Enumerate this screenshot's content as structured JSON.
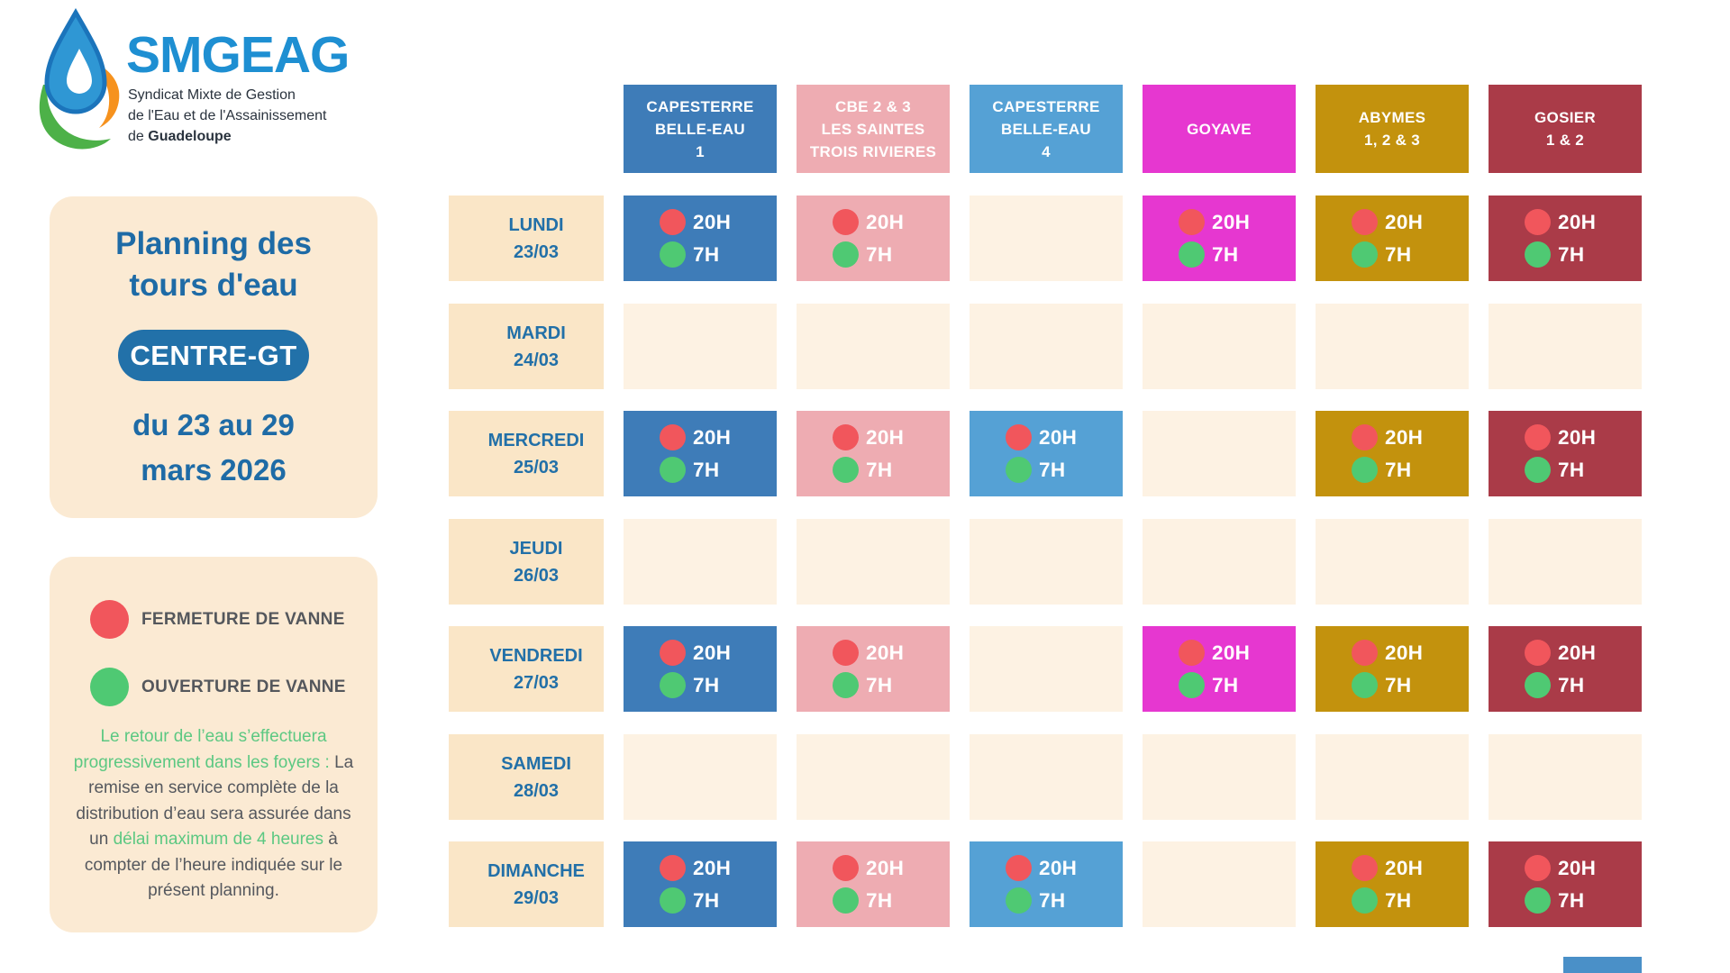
{
  "logo": {
    "brand": "SMGEAG",
    "subtitle_line1": "Syndicat Mixte de Gestion",
    "subtitle_line2": "de l'Eau et de l'Assainissement",
    "subtitle_line3_prefix": "de ",
    "subtitle_line3_bold": "Guadeloupe"
  },
  "intro": {
    "title_line1": "Planning des",
    "title_line2": "tours d'eau",
    "badge": "CENTRE-GT",
    "date_line1": "du 23 au 29",
    "date_line2": "mars 2026",
    "badge_color": "#2271a9",
    "text_color": "#1e6ba6"
  },
  "legend": {
    "items": [
      {
        "id": "fermeture",
        "label": "FERMETURE DE VANNE",
        "color": "#f1565c"
      },
      {
        "id": "ouverture",
        "label": "OUVERTURE DE VANNE",
        "color": "#4fc973"
      }
    ],
    "note_segments": [
      {
        "text": "Le retour de l’eau s’effectuera progressivement dans les foyers :",
        "style": "hl"
      },
      {
        "text": " La remise en service complète de la distribution d’eau sera assurée dans un ",
        "style": "normal"
      },
      {
        "text": "délai maximum de 4 heures",
        "style": "hl"
      },
      {
        "text": " à compter de l’heure indiquée sur le présent planning.",
        "style": "normal"
      }
    ]
  },
  "schedule": {
    "columns": [
      {
        "id": "capesterre-belle-eau-1",
        "lines": [
          "CAPESTERRE",
          "BELLE-EAU",
          "1"
        ],
        "color": "#3e7cb8"
      },
      {
        "id": "cbe-2-3-les-saintes-trois-rivieres",
        "lines": [
          "CBE 2 & 3",
          "LES SAINTES",
          "TROIS RIVIERES"
        ],
        "color": "#eeacb2"
      },
      {
        "id": "capesterre-belle-eau-4",
        "lines": [
          "CAPESTERRE",
          "BELLE-EAU",
          "4"
        ],
        "color": "#55a1d5"
      },
      {
        "id": "goyave",
        "lines": [
          "GOYAVE"
        ],
        "color": "#e637d0"
      },
      {
        "id": "abymes-1-2-3",
        "lines": [
          "ABYMES",
          "1, 2 & 3"
        ],
        "color": "#c3920d"
      },
      {
        "id": "gosier-1-2",
        "lines": [
          "GOSIER",
          "1 & 2"
        ],
        "color": "#aa3b48"
      }
    ],
    "rows": [
      {
        "day": "LUNDI",
        "date": "23/03",
        "cells": [
          1,
          1,
          0,
          1,
          1,
          1
        ]
      },
      {
        "day": "MARDI",
        "date": "24/03",
        "cells": [
          0,
          0,
          0,
          0,
          0,
          0
        ]
      },
      {
        "day": "MERCREDI",
        "date": "25/03",
        "cells": [
          1,
          1,
          1,
          0,
          1,
          1
        ]
      },
      {
        "day": "JEUDI",
        "date": "26/03",
        "cells": [
          0,
          0,
          0,
          0,
          0,
          0
        ]
      },
      {
        "day": "VENDREDI",
        "date": "27/03",
        "cells": [
          1,
          1,
          0,
          1,
          1,
          1
        ]
      },
      {
        "day": "SAMEDI",
        "date": "28/03",
        "cells": [
          0,
          0,
          0,
          0,
          0,
          0
        ]
      },
      {
        "day": "DIMANCHE",
        "date": "29/03",
        "cells": [
          1,
          1,
          1,
          0,
          1,
          1
        ]
      }
    ],
    "closure_time": "20H",
    "opening_time": "7H",
    "closure_dot_color": "#f1565c",
    "opening_dot_color": "#4fc973",
    "day_cell_color": "#fae6c7",
    "empty_cell_color": "#fdf2e3"
  }
}
